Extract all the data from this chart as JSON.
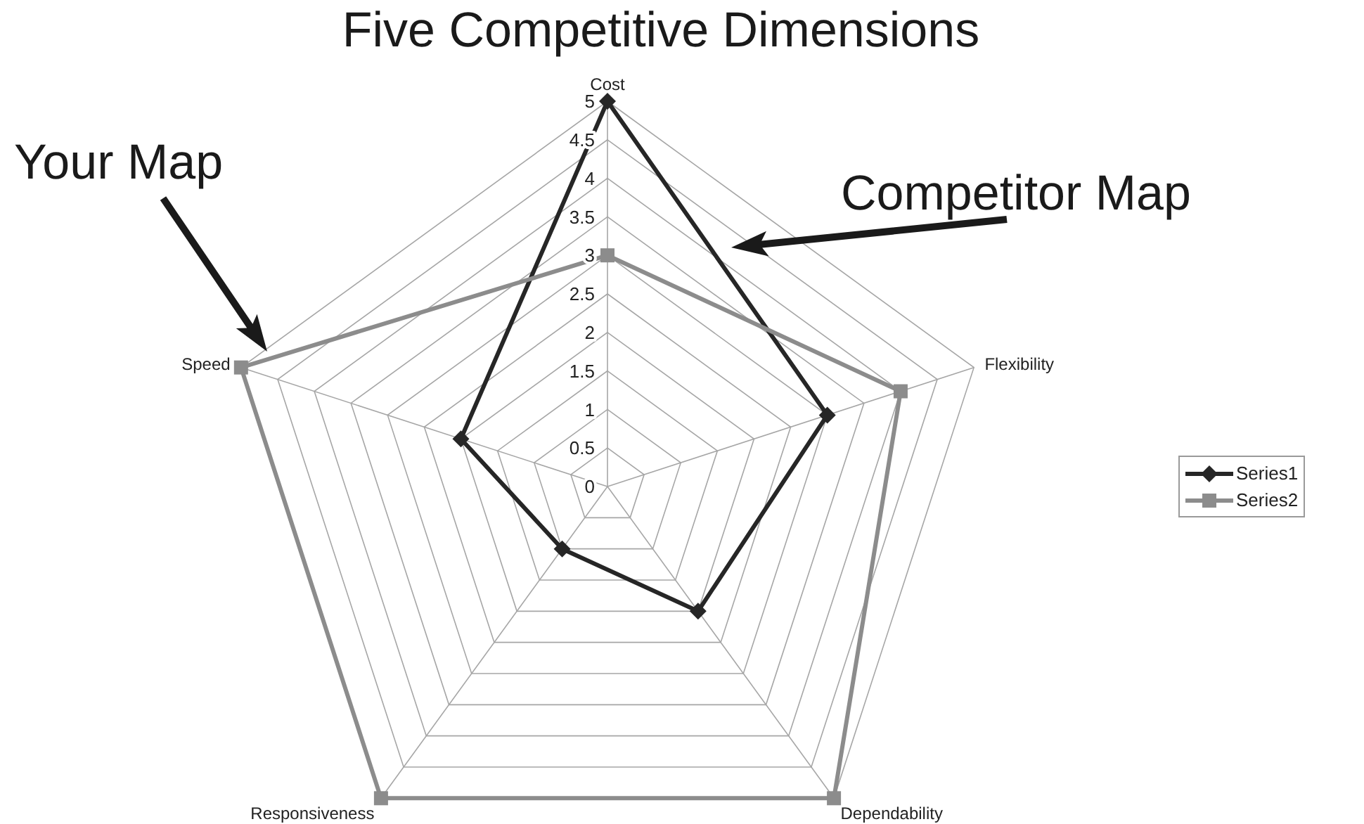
{
  "chart_data": {
    "type": "radar",
    "title": "Five Competitive Dimensions",
    "categories": [
      "Cost",
      "Flexibility",
      "Dependability",
      "Responsiveness",
      "Speed"
    ],
    "series": [
      {
        "name": "Series1",
        "color": "#262626",
        "marker": "diamond",
        "values": [
          5,
          3,
          2,
          1,
          2
        ]
      },
      {
        "name": "Series2",
        "color": "#8c8c8c",
        "marker": "square",
        "values": [
          3,
          4,
          5,
          5,
          5
        ]
      }
    ],
    "ylim": [
      0,
      5
    ],
    "yticks": [
      0,
      0.5,
      1,
      1.5,
      2,
      2.5,
      3,
      3.5,
      4,
      4.5,
      5
    ],
    "grid": true,
    "legend": "right",
    "annotations": [
      "Your Map",
      "Competitor Map"
    ]
  }
}
